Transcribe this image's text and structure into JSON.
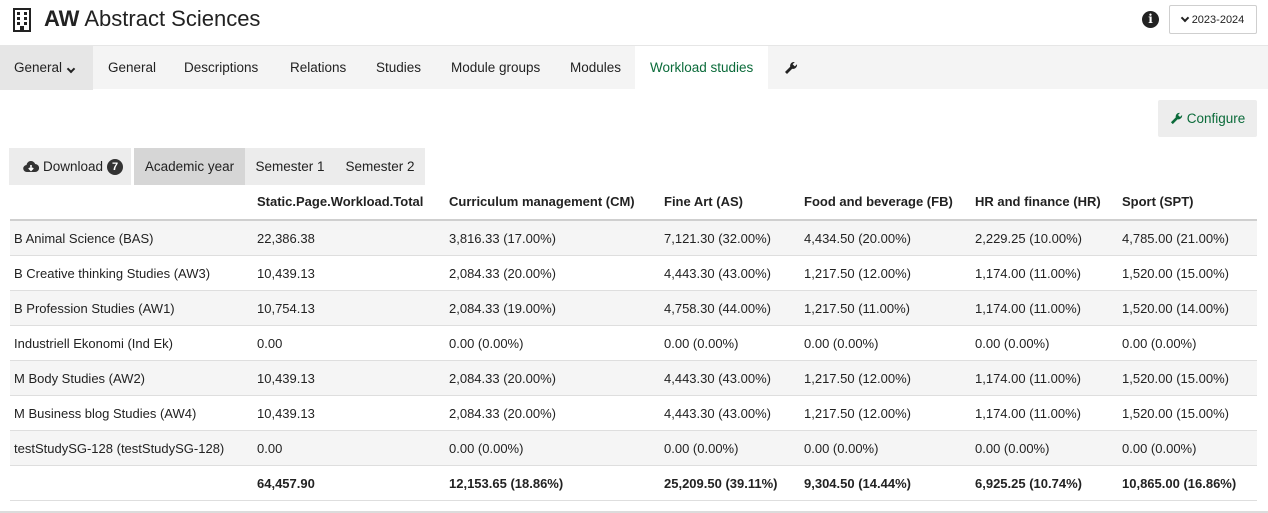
{
  "header": {
    "title_bold": "AW",
    "title_rest": "Abstract Sciences",
    "year_selector": "2023-2024",
    "icons": {
      "org": "building-icon",
      "info": "info-icon"
    }
  },
  "nav": {
    "dropdown_label": "General",
    "tabs": [
      "General",
      "Descriptions",
      "Relations",
      "Studies",
      "Module groups",
      "Modules",
      "Workload studies"
    ],
    "active_tab": "Workload studies",
    "settings_icon": "wrench-icon"
  },
  "configure": {
    "label": "Configure"
  },
  "toolbar": {
    "download_label": "Download",
    "download_count": "7",
    "periods": [
      "Academic year",
      "Semester 1",
      "Semester 2"
    ],
    "active_period": "Academic year"
  },
  "table": {
    "columns": [
      "",
      "Static.Page.Workload.Total",
      "Curriculum management (CM)",
      "Fine Art (AS)",
      "Food and beverage (FB)",
      "HR and finance (HR)",
      "Sport (SPT)"
    ],
    "rows": [
      [
        "B Animal Science (BAS)",
        "22,386.38",
        "3,816.33 (17.00%)",
        "7,121.30 (32.00%)",
        "4,434.50 (20.00%)",
        "2,229.25 (10.00%)",
        "4,785.00 (21.00%)"
      ],
      [
        "B Creative thinking Studies (AW3)",
        "10,439.13",
        "2,084.33 (20.00%)",
        "4,443.30 (43.00%)",
        "1,217.50 (12.00%)",
        "1,174.00 (11.00%)",
        "1,520.00 (15.00%)"
      ],
      [
        "B Profession Studies (AW1)",
        "10,754.13",
        "2,084.33 (19.00%)",
        "4,758.30 (44.00%)",
        "1,217.50 (11.00%)",
        "1,174.00 (11.00%)",
        "1,520.00 (14.00%)"
      ],
      [
        "Industriell Ekonomi (Ind Ek)",
        "0.00",
        "0.00 (0.00%)",
        "0.00 (0.00%)",
        "0.00 (0.00%)",
        "0.00 (0.00%)",
        "0.00 (0.00%)"
      ],
      [
        "M Body Studies (AW2)",
        "10,439.13",
        "2,084.33 (20.00%)",
        "4,443.30 (43.00%)",
        "1,217.50 (12.00%)",
        "1,174.00 (11.00%)",
        "1,520.00 (15.00%)"
      ],
      [
        "M Business blog Studies (AW4)",
        "10,439.13",
        "2,084.33 (20.00%)",
        "4,443.30 (43.00%)",
        "1,217.50 (12.00%)",
        "1,174.00 (11.00%)",
        "1,520.00 (15.00%)"
      ],
      [
        "testStudySG-128 (testStudySG-128)",
        "0.00",
        "0.00 (0.00%)",
        "0.00 (0.00%)",
        "0.00 (0.00%)",
        "0.00 (0.00%)",
        "0.00 (0.00%)"
      ]
    ],
    "totals": [
      "",
      "64,457.90",
      "12,153.65 (18.86%)",
      "25,209.50 (39.11%)",
      "9,304.50 (14.44%)",
      "6,925.25 (10.74%)",
      "10,865.00 (16.86%)"
    ]
  },
  "colors": {
    "accent": "#0b6b3a",
    "nav_bg": "#f4f4f4",
    "row_alt": "#f5f5f5"
  }
}
